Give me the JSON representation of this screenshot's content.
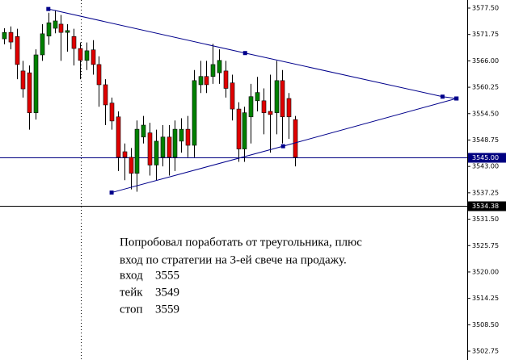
{
  "chart_data": {
    "type": "candlestick",
    "x": [
      0,
      1,
      2,
      3,
      4,
      5,
      6,
      7,
      8,
      9,
      10,
      11,
      12,
      13,
      14,
      15,
      16,
      17,
      18,
      19,
      20,
      21,
      22,
      23,
      24,
      25,
      26,
      27,
      28,
      29,
      30,
      31,
      32,
      33,
      34,
      35,
      36,
      37,
      38,
      39,
      40,
      41,
      42,
      43,
      44,
      45,
      46
    ],
    "open": [
      3570.8,
      3572.2,
      3571.3,
      3563.8,
      3563.4,
      3554.7,
      3567.3,
      3571.4,
      3573.1,
      3574,
      3572.2,
      3571.3,
      3568.7,
      3566.1,
      3568.4,
      3565.2,
      3560.8,
      3556.8,
      3553.8,
      3546.2,
      3545,
      3541.5,
      3549.4,
      3550.3,
      3543.3,
      3545,
      3549.4,
      3545,
      3548.5,
      3551.1,
      3547.6,
      3560.8,
      3562.6,
      3562.6,
      3563.4,
      3563.8,
      3561.2,
      3555.5,
      3546.8,
      3553.8,
      3557.3,
      3557.3,
      3555,
      3554.7,
      3561.7,
      3557.8,
      3553.2
    ],
    "high": [
      3573.1,
      3573.5,
      3573,
      3566,
      3565,
      3568.5,
      3574,
      3576.5,
      3577,
      3576,
      3574,
      3573,
      3570,
      3570,
      3570.5,
      3567,
      3562,
      3558,
      3555,
      3548,
      3547,
      3553,
      3554,
      3552.5,
      3551,
      3552,
      3552,
      3553,
      3553.5,
      3554,
      3564,
      3566,
      3566,
      3569.7,
      3568.5,
      3566,
      3563,
      3557,
      3556,
      3561,
      3562.5,
      3560,
      3563,
      3566,
      3564,
      3559,
      3554
    ],
    "low": [
      3569.6,
      3568.5,
      3562,
      3558,
      3551,
      3553.2,
      3566,
      3569.5,
      3572,
      3566,
      3568,
      3565,
      3562,
      3564,
      3563,
      3556,
      3552,
      3551,
      3542,
      3540,
      3538,
      3537.5,
      3548,
      3541,
      3540,
      3543,
      3541,
      3542,
      3546,
      3545,
      3545,
      3559,
      3559,
      3561,
      3561,
      3558,
      3553,
      3544,
      3544,
      3548,
      3555,
      3550,
      3546,
      3550,
      3548,
      3549,
      3543
    ],
    "close": [
      3572.2,
      3570.1,
      3565.2,
      3559.9,
      3554.7,
      3567.3,
      3571.9,
      3574.3,
      3574.7,
      3572.2,
      3572.6,
      3568.7,
      3566.1,
      3568.2,
      3565.2,
      3560.8,
      3556.4,
      3552.9,
      3545,
      3545,
      3541.5,
      3551.1,
      3552,
      3543.3,
      3548.5,
      3549.4,
      3545,
      3551.1,
      3551.1,
      3547.6,
      3561.7,
      3562.6,
      3560.8,
      3565.2,
      3566.1,
      3560,
      3555.5,
      3546.8,
      3554.7,
      3558.2,
      3559.1,
      3554.7,
      3554.3,
      3561.7,
      3553.8,
      3553.8,
      3545
    ],
    "up_color": "#008000",
    "down_color": "#e00000",
    "xlim": [
      -0.64,
      73.2
    ],
    "ylim": [
      3500.82,
      3579.26
    ],
    "yticks": [
      {
        "value": 3577.5,
        "label": "3577.50"
      },
      3571.75,
      {
        "value": 3566,
        "label": "3566.00"
      },
      3560.25,
      {
        "value": 3554.5,
        "label": "3554.50"
      },
      3548.75,
      {
        "value": 3543,
        "label": "3543.00"
      },
      3537.25,
      {
        "value": 3531.5,
        "label": "3531.50"
      },
      3525.75,
      {
        "value": 3520,
        "label": "3520.00"
      },
      3514.25,
      {
        "value": 3508.5,
        "label": "3508.50"
      },
      3502.75
    ],
    "hlines": [
      {
        "value": 3545,
        "label": "3545.00",
        "color": "#000080"
      },
      {
        "value": 3534.38,
        "color": "#000000"
      }
    ],
    "trendlines": [
      {
        "color": "#00008b",
        "x": [
          7.0,
          38.1,
          69.3,
          71.5
        ],
        "y": [
          3577.3,
          3567.7,
          3558.2,
          3557.8
        ]
      },
      {
        "color": "#00008b",
        "x": [
          17.0,
          44.1,
          71.5
        ],
        "y": [
          3537.3,
          3547.4,
          3557.8
        ]
      }
    ],
    "annotation": {
      "lines": [
        "Попробовал поработать от треугольника, плюс",
        "вход по стратегии на 3-ей свече на продажу."
      ],
      "levels": [
        {
          "label": "вход",
          "value": 3555
        },
        {
          "label": "тейк",
          "value": 3549
        },
        {
          "label": "стоп",
          "value": 3559
        }
      ]
    }
  }
}
